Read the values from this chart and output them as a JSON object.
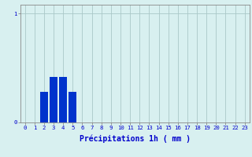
{
  "xlabel": "Précipitations 1h ( mm )",
  "background_color": "#d8f0f0",
  "bar_color": "#0033cc",
  "grid_color": "#aac8c8",
  "axis_color": "#888888",
  "label_color": "#0000cc",
  "num_bars": 24,
  "bar_values": [
    0,
    0,
    0.28,
    0.42,
    0.42,
    0.28,
    0,
    0,
    0,
    0,
    0,
    0,
    0,
    0,
    0,
    0,
    0,
    0,
    0,
    0,
    0,
    0,
    0,
    0
  ],
  "ylim": [
    0,
    1.08
  ],
  "xlim": [
    -0.5,
    23.5
  ],
  "yticks": [
    0,
    1
  ],
  "xtick_labels": [
    "0",
    "1",
    "2",
    "3",
    "4",
    "5",
    "6",
    "7",
    "8",
    "9",
    "10",
    "11",
    "12",
    "13",
    "14",
    "15",
    "16",
    "17",
    "18",
    "19",
    "20",
    "21",
    "22",
    "23"
  ],
  "tick_fontsize": 5.2,
  "xlabel_fontsize": 7.0
}
